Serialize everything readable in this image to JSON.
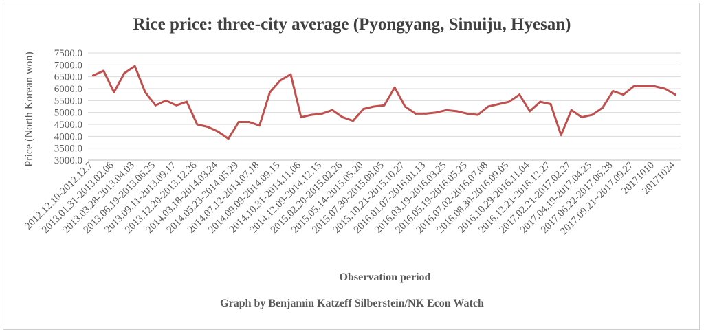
{
  "chart_data": {
    "type": "line",
    "title": "Rice price:  three-city average (Pyongyang, Sinuiju, Hyesan)",
    "xlabel": "Observation period",
    "ylabel": "Price (North Korean won)",
    "credit": "Graph by Benjamin Katzeff Silberstein/NK Econ Watch",
    "ylim": [
      3000,
      7500
    ],
    "yticks": [
      7500,
      7000,
      6500,
      6000,
      5500,
      5000,
      4500,
      4000,
      3500,
      3000
    ],
    "ytick_labels": [
      "7500.0",
      "7000.0",
      "6500.0",
      "6000.0",
      "5500.0",
      "5000.0",
      "4500.0",
      "4000.0",
      "3500.0",
      "3000.0"
    ],
    "grid": true,
    "legend": "none",
    "line_color": "#c0504d",
    "x_tick_labels": [
      {
        "index": 0,
        "label": "2012.12.10-2012.12.7"
      },
      {
        "index": 2,
        "label": "2013.01.31-2013.02.06"
      },
      {
        "index": 4,
        "label": "2013.03.28-2013.04.03"
      },
      {
        "index": 6,
        "label": "2013.06.19-2013.06.25"
      },
      {
        "index": 8,
        "label": "2013.09.11-2013.09.17"
      },
      {
        "index": 10,
        "label": "2013.12.20-2013.12.26"
      },
      {
        "index": 12,
        "label": "2014.03.18-2014.03.24"
      },
      {
        "index": 14,
        "label": "2014.05.23-2014.05.29"
      },
      {
        "index": 16,
        "label": "2014.07.12-2014.07.18"
      },
      {
        "index": 18,
        "label": "2014.09.09-2014.09.15"
      },
      {
        "index": 20,
        "label": "2014.10.31-2014.11.06"
      },
      {
        "index": 22,
        "label": "2014.12.09-2014.12.15"
      },
      {
        "index": 24,
        "label": "2015.02.20-2015.02.26"
      },
      {
        "index": 26,
        "label": "2015.05.14-2015.05.20"
      },
      {
        "index": 28,
        "label": "2015.07.30-2015.08.05"
      },
      {
        "index": 30,
        "label": "2015.10.21-2015.10.27"
      },
      {
        "index": 32,
        "label": "2016.01.07-2016.01.13"
      },
      {
        "index": 34,
        "label": "2016.03.19-2016.03.25"
      },
      {
        "index": 36,
        "label": "2016.05.19-2016.05.25"
      },
      {
        "index": 38,
        "label": "2016.07.02-2016.07.08"
      },
      {
        "index": 40,
        "label": "2016.08.30-2016.09.05"
      },
      {
        "index": 42,
        "label": "2016.10.29-2016.11.04"
      },
      {
        "index": 44,
        "label": "2016.12.21-2016.12.27"
      },
      {
        "index": 46,
        "label": "2017.02.21-2017.02.27"
      },
      {
        "index": 48,
        "label": "2017.04.19-2017.04.25"
      },
      {
        "index": 50,
        "label": "2017.06.22-2017.06.28"
      },
      {
        "index": 52,
        "label": "2017.09.21~2017.09.27"
      },
      {
        "index": 54,
        "label": "20171010"
      },
      {
        "index": 56,
        "label": "20171024"
      }
    ],
    "series": [
      {
        "values": [
          6550,
          6750,
          5850,
          6650,
          6950,
          5850,
          5300,
          5500,
          5300,
          5450,
          4500,
          4400,
          4200,
          3900,
          4600,
          4600,
          4450,
          5850,
          6350,
          6600,
          4800,
          4900,
          4950,
          5100,
          4800,
          4650,
          5150,
          5250,
          5300,
          6050,
          5250,
          4950,
          4950,
          5000,
          5100,
          5050,
          4950,
          4900,
          5250,
          5350,
          5450,
          5750,
          5050,
          5450,
          5350,
          4050,
          5100,
          4800,
          4900,
          5200,
          5900,
          5750,
          6100,
          6100,
          6100,
          6000,
          5750
        ]
      }
    ]
  }
}
